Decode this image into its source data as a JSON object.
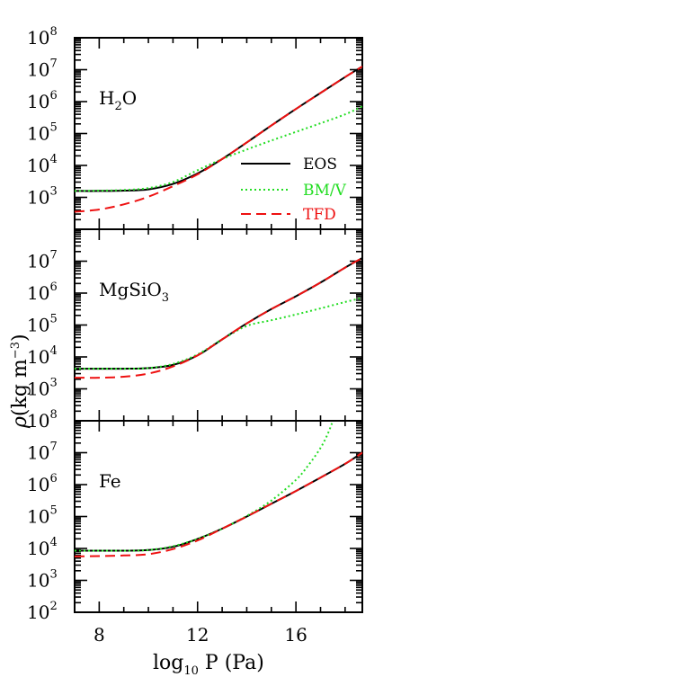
{
  "chart_data": {
    "type": "line",
    "xlabel_main": "log",
    "xlabel_sub": "10",
    "xlabel_tail": " P (Pa)",
    "ylabel_rho": "ρ",
    "ylabel_body": "(kg m",
    "ylabel_exp": "−3",
    "ylabel_close": ")",
    "xlim": [
      7,
      18.7
    ],
    "xticks": [
      "8",
      "12",
      "16"
    ],
    "ylim_log": [
      2,
      8
    ],
    "y_scale": "log",
    "legend": {
      "placement": "upper panel, right",
      "entries": [
        {
          "label": "EOS",
          "color": "#000000",
          "style": "solid"
        },
        {
          "label": "BM/V",
          "color": "#22dd22",
          "style": "dotted"
        },
        {
          "label": "TFD",
          "color": "#ee1111",
          "style": "dashed"
        }
      ]
    },
    "panels": [
      {
        "label_main": "H",
        "label_sub": "2",
        "label_tail": "O",
        "ylim_log": [
          2,
          8
        ],
        "ytick_labels": [
          "10|3",
          "10|4",
          "10|5",
          "10|6",
          "10|7",
          "10|8"
        ],
        "series": [
          {
            "name": "EOS",
            "x": [
              7,
              8,
              9,
              10,
              11,
              12,
              13,
              14,
              15,
              16,
              17,
              18,
              18.7
            ],
            "log_rho": [
              3.2,
              3.2,
              3.21,
              3.25,
              3.42,
              3.75,
              4.2,
              4.72,
              5.25,
              5.77,
              6.27,
              6.77,
              7.1
            ]
          },
          {
            "name": "BM/V",
            "x": [
              7,
              8,
              9,
              10,
              11,
              12,
              13,
              14,
              15,
              16,
              17,
              18,
              18.7
            ],
            "log_rho": [
              3.2,
              3.21,
              3.23,
              3.29,
              3.48,
              3.85,
              4.2,
              4.5,
              4.78,
              5.05,
              5.32,
              5.6,
              5.85
            ]
          },
          {
            "name": "TFD",
            "x": [
              7,
              8,
              9,
              10,
              11,
              12,
              13,
              14,
              15,
              16,
              17,
              18,
              18.7
            ],
            "log_rho": [
              2.55,
              2.62,
              2.78,
              3.02,
              3.35,
              3.72,
              4.2,
              4.72,
              5.25,
              5.77,
              6.27,
              6.77,
              7.1
            ]
          }
        ]
      },
      {
        "label_main": "MgSiO",
        "label_sub": "3",
        "label_tail": "",
        "ylim_log": [
          2,
          8
        ],
        "ytick_labels": [
          "10|3",
          "10|4",
          "10|5",
          "10|6",
          "10|7"
        ],
        "series": [
          {
            "name": "EOS",
            "x": [
              7,
              8,
              9,
              10,
              11,
              12,
              13,
              14,
              15,
              16,
              17,
              18,
              18.7
            ],
            "log_rho": [
              3.63,
              3.63,
              3.63,
              3.65,
              3.75,
              4.05,
              4.55,
              5.05,
              5.5,
              5.9,
              6.33,
              6.8,
              7.1
            ]
          },
          {
            "name": "BM/V",
            "x": [
              7,
              8,
              9,
              10,
              11,
              12,
              13,
              14,
              15,
              16,
              17,
              18,
              18.7
            ],
            "log_rho": [
              3.63,
              3.63,
              3.63,
              3.65,
              3.78,
              4.08,
              4.55,
              4.97,
              5.15,
              5.33,
              5.52,
              5.72,
              5.85
            ]
          },
          {
            "name": "TFD",
            "x": [
              7,
              8,
              9,
              10,
              11,
              12,
              13,
              14,
              15,
              16,
              17,
              18,
              18.7
            ],
            "log_rho": [
              3.35,
              3.35,
              3.38,
              3.48,
              3.7,
              4.05,
              4.55,
              5.05,
              5.5,
              5.9,
              6.33,
              6.8,
              7.1
            ]
          }
        ]
      },
      {
        "label_main": "Fe",
        "label_sub": "",
        "label_tail": "",
        "ylim_log": [
          2,
          8
        ],
        "ytick_labels": [
          "10|2",
          "10|3",
          "10|4",
          "10|5",
          "10|6",
          "10|7",
          "10|8"
        ],
        "series": [
          {
            "name": "EOS",
            "x": [
              7,
              8,
              9,
              10,
              11,
              12,
              13,
              14,
              15,
              16,
              17,
              18,
              18.7
            ],
            "log_rho": [
              3.93,
              3.93,
              3.93,
              3.95,
              4.05,
              4.3,
              4.62,
              5.0,
              5.4,
              5.8,
              6.22,
              6.65,
              7.0
            ]
          },
          {
            "name": "BM/V",
            "x": [
              7,
              8,
              9,
              10,
              11,
              12,
              13,
              14,
              15,
              16,
              16.5,
              17,
              17.3,
              17.5
            ],
            "log_rho": [
              3.93,
              3.93,
              3.93,
              3.95,
              4.07,
              4.3,
              4.62,
              5.02,
              5.5,
              6.15,
              6.6,
              7.15,
              7.6,
              8.0
            ]
          },
          {
            "name": "TFD",
            "x": [
              7,
              8,
              9,
              10,
              11,
              12,
              13,
              14,
              15,
              16,
              17,
              18,
              18.7
            ],
            "log_rho": [
              3.75,
              3.76,
              3.78,
              3.82,
              3.98,
              4.25,
              4.62,
              5.0,
              5.4,
              5.8,
              6.22,
              6.65,
              7.0
            ]
          }
        ]
      }
    ]
  }
}
